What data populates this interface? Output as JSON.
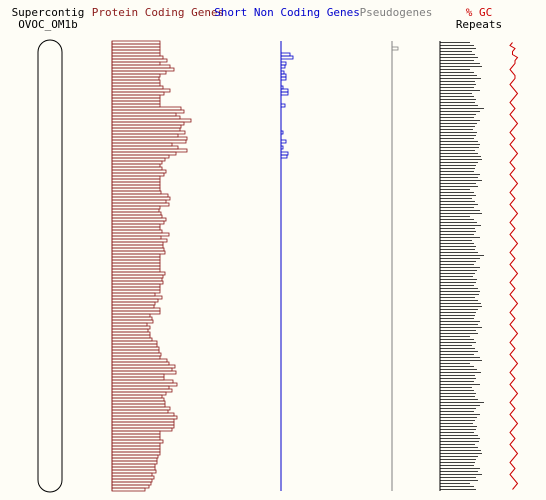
{
  "header": {
    "supercontig_label": "Supercontig",
    "supercontig_name": "OVOC_OM1b",
    "protein_label": "Protein Coding Genes",
    "short_nc_label": "Short Non Coding Genes",
    "pseudo_label": "Pseudogenes",
    "gc_label": "% GC",
    "repeats_label": "Repeats"
  },
  "colors": {
    "background": "#fefdf6",
    "protein": "#8b1a1a",
    "short_nc": "#0000cc",
    "pseudo": "#808080",
    "gc_line": "#cc0000",
    "repeats": "#000000",
    "text": "#000000"
  },
  "chart_data": {
    "type": "bar",
    "orientation": "horizontal-density-tracks",
    "bins": 150,
    "tracks": [
      {
        "name": "Protein Coding Genes",
        "values": [
          48,
          48,
          48,
          48,
          48,
          51,
          55,
          48,
          58,
          62,
          54,
          48,
          47,
          48,
          48,
          51,
          58,
          52,
          48,
          48,
          48,
          48,
          69,
          72,
          64,
          68,
          79,
          72,
          69,
          68,
          73,
          66,
          75,
          74,
          60,
          66,
          75,
          64,
          57,
          53,
          50,
          48,
          50,
          54,
          52,
          48,
          48,
          48,
          48,
          48,
          49,
          56,
          58,
          54,
          57,
          48,
          47,
          49,
          50,
          54,
          52,
          48,
          48,
          50,
          57,
          49,
          55,
          51,
          51,
          52,
          53,
          48,
          48,
          48,
          48,
          48,
          48,
          53,
          51,
          50,
          51,
          48,
          48,
          48,
          43,
          50,
          46,
          43,
          42,
          48,
          48,
          38,
          40,
          41,
          35,
          38,
          36,
          38,
          38,
          40,
          45,
          45,
          47,
          47,
          49,
          48,
          55,
          57,
          63,
          60,
          64,
          52,
          52,
          61,
          65,
          57,
          60,
          54,
          50,
          52,
          53,
          53,
          58,
          56,
          62,
          65,
          62,
          62,
          62,
          60,
          48,
          48,
          48,
          51,
          48,
          48,
          48,
          48,
          46,
          45,
          45,
          43,
          43,
          44,
          40,
          42,
          40,
          39,
          37,
          33
        ]
      },
      {
        "name": "Short Non Coding Genes",
        "values": [
          0,
          0,
          0,
          0,
          9,
          12,
          0,
          5,
          4,
          0,
          3,
          5,
          5,
          0,
          0,
          2,
          7,
          7,
          0,
          0,
          0,
          4,
          0,
          0,
          0,
          0,
          0,
          0,
          0,
          0,
          2,
          0,
          0,
          5,
          0,
          2,
          0,
          7,
          6,
          0,
          0,
          0,
          0,
          0,
          0,
          0,
          0,
          0,
          0,
          0,
          0,
          0,
          0,
          0,
          0,
          0,
          0,
          0,
          0,
          0,
          0,
          0,
          0,
          0,
          0,
          0,
          0,
          0,
          0,
          0,
          0,
          0,
          0,
          0,
          0,
          0,
          0,
          0,
          0,
          0,
          0,
          0,
          0,
          0,
          0,
          0,
          0,
          0,
          0,
          0,
          0,
          0,
          0,
          0,
          0,
          0,
          0,
          0,
          0,
          0,
          0,
          0,
          0,
          0,
          0,
          0,
          0,
          0,
          0,
          0,
          0,
          0,
          0,
          0,
          0,
          0,
          0,
          0,
          0,
          0,
          0,
          0,
          0,
          0,
          0,
          0,
          0,
          0,
          0,
          0,
          0,
          0,
          0,
          0,
          0,
          0,
          0,
          0,
          0,
          0,
          0,
          0,
          0,
          0,
          0,
          0,
          0,
          0,
          0,
          0
        ]
      },
      {
        "name": "Pseudogenes",
        "values": [
          0,
          0,
          6,
          0,
          0,
          0,
          0,
          0,
          0,
          0,
          0,
          0,
          0,
          0,
          0,
          0,
          0,
          0,
          0,
          0,
          0,
          0,
          0,
          0,
          0,
          0,
          0,
          0,
          0,
          0,
          0,
          0,
          0,
          0,
          0,
          0,
          0,
          0,
          0,
          0,
          0,
          0,
          0,
          0,
          0,
          0,
          0,
          0,
          0,
          0,
          0,
          0,
          0,
          0,
          0,
          0,
          0,
          0,
          0,
          0,
          0,
          0,
          0,
          0,
          0,
          0,
          0,
          0,
          0,
          0,
          0,
          0,
          0,
          0,
          0,
          0,
          0,
          0,
          0,
          0,
          0,
          0,
          0,
          0,
          0,
          0,
          0,
          0,
          0,
          0,
          0,
          0,
          0,
          0,
          0,
          0,
          0,
          0,
          0,
          0,
          0,
          0,
          0,
          0,
          0,
          0,
          0,
          0,
          0,
          0,
          0,
          0,
          0,
          0,
          0,
          0,
          0,
          0,
          0,
          0,
          0,
          0,
          0,
          0,
          0,
          0,
          0,
          0,
          0,
          0,
          0,
          0,
          0,
          0,
          0,
          0,
          0,
          0,
          0,
          0,
          0,
          0,
          0,
          0,
          0,
          0,
          0,
          0,
          0,
          0
        ]
      },
      {
        "name": "Repeats",
        "values": [
          30,
          34,
          36,
          32,
          35,
          38,
          34,
          40,
          42,
          30,
          34,
          37,
          41,
          35,
          36,
          34,
          40,
          32,
          34,
          36,
          35,
          38,
          44,
          40,
          36,
          34,
          40,
          37,
          35,
          33,
          37,
          36,
          34,
          38,
          40,
          39,
          35,
          38,
          41,
          42,
          38,
          36,
          35,
          34,
          40,
          38,
          42,
          36,
          38,
          30,
          34,
          36,
          32,
          35,
          38,
          34,
          40,
          42,
          30,
          34,
          37,
          41,
          35,
          36,
          34,
          40,
          32,
          34,
          36,
          35,
          38,
          44,
          40,
          36,
          34,
          40,
          37,
          35,
          33,
          37,
          36,
          34,
          38,
          40,
          39,
          35,
          38,
          41,
          42,
          38,
          36,
          35,
          34,
          40,
          38,
          42,
          36,
          38,
          30,
          34,
          36,
          32,
          35,
          38,
          34,
          40,
          42,
          30,
          34,
          37,
          41,
          35,
          36,
          34,
          40,
          32,
          34,
          36,
          35,
          38,
          44,
          40,
          36,
          34,
          40,
          37,
          35,
          33,
          37,
          36,
          34,
          38,
          40,
          39,
          35,
          38,
          41,
          42,
          38,
          36,
          35,
          34,
          40,
          38,
          42,
          36,
          38,
          30,
          34,
          36
        ]
      }
    ],
    "gc_percent": [
      45,
      44,
      46,
      45,
      45,
      47,
      46,
      46,
      45,
      44,
      45,
      46,
      46,
      45,
      44,
      45,
      46,
      47,
      46,
      45,
      44,
      45,
      46,
      45,
      44,
      45,
      46,
      47,
      46,
      45,
      44,
      45,
      46,
      45,
      44,
      45,
      46,
      47,
      46,
      45,
      44,
      45,
      46,
      45,
      44,
      45,
      46,
      47,
      46,
      45,
      44,
      45,
      46,
      45,
      44,
      45,
      46,
      47,
      46,
      45,
      44,
      45,
      46,
      45,
      44,
      45,
      46,
      47,
      46,
      45,
      44,
      45,
      46,
      45,
      44,
      45,
      46,
      47,
      46,
      45,
      44,
      45,
      46,
      45,
      44,
      45,
      46,
      47,
      46,
      45,
      44,
      45,
      46,
      45,
      44,
      45,
      46,
      47,
      46,
      45,
      44,
      45,
      46,
      45,
      44,
      45,
      46,
      47,
      46,
      45,
      44,
      45,
      46,
      45,
      44,
      45,
      46,
      47,
      46,
      45,
      44,
      45,
      46,
      45,
      44,
      45,
      46,
      47,
      46,
      45,
      44,
      45,
      46,
      45,
      44,
      45,
      46,
      47,
      46,
      45,
      44,
      45,
      46,
      45,
      44,
      45,
      46,
      47,
      46,
      45
    ],
    "gc_range": [
      40,
      50
    ]
  }
}
